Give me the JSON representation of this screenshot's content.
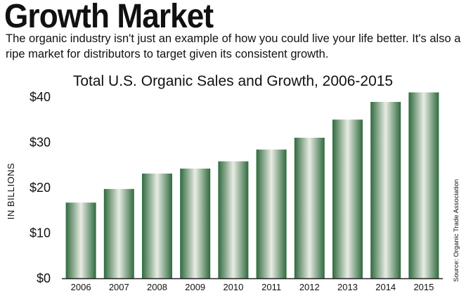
{
  "headline": "Growth Market",
  "subtitle": "The organic industry isn't just an example of how you could live your life better. It's also a ripe market for distributors to target given its consistent growth.",
  "source": "Source: Organic Trade Association",
  "colors": {
    "bar_dark": "#2f6a3e",
    "bar_light": "#e9ece4",
    "axis": "#222222"
  },
  "chart_data": {
    "type": "bar",
    "title": "Total U.S. Organic Sales and Growth, 2006-2015",
    "xlabel": "",
    "ylabel": "IN BILLIONS",
    "categories": [
      "2006",
      "2007",
      "2008",
      "2009",
      "2010",
      "2011",
      "2012",
      "2013",
      "2014",
      "2015"
    ],
    "values": [
      16.7,
      19.7,
      23.1,
      24.2,
      25.8,
      28.4,
      31.0,
      35.0,
      38.9,
      41.0
    ],
    "ylim": [
      0,
      42
    ],
    "yticks": [
      0,
      10,
      20,
      30,
      40
    ],
    "ytick_labels": [
      "$0",
      "$10",
      "$20",
      "$30",
      "$40"
    ],
    "grid": false,
    "legend": "none"
  }
}
